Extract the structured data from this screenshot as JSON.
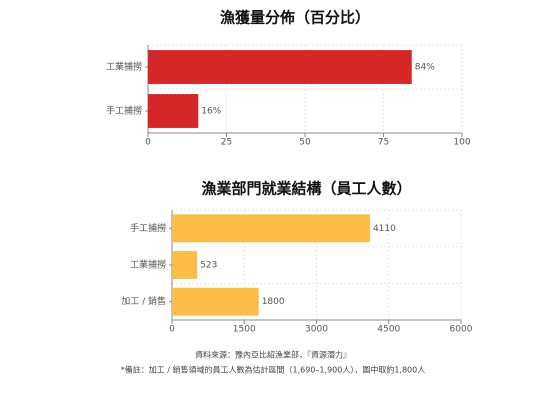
{
  "chart_data": [
    {
      "type": "bar",
      "orientation": "horizontal",
      "title": "漁獲量分佈（百分比）",
      "categories": [
        "工業捕撈",
        "手工捕撈"
      ],
      "values": [
        84,
        16
      ],
      "value_labels": [
        "84%",
        "16%"
      ],
      "color": "#d62728",
      "xlim": [
        0,
        100
      ],
      "xticks": [
        0,
        25,
        50,
        75,
        100
      ],
      "grid": true
    },
    {
      "type": "bar",
      "orientation": "horizontal",
      "title": "漁業部門就業結構（員工人數）",
      "categories": [
        "手工捕撈",
        "工業捕撈",
        "加工 / 銷售"
      ],
      "values": [
        4110,
        523,
        1800
      ],
      "color": "#fbbd48",
      "xlim": [
        0,
        6000
      ],
      "xticks": [
        0,
        1500,
        3000,
        4500,
        6000
      ],
      "grid": true
    }
  ],
  "footnotes": [
    "資料來源：豫內亞比紹漁業部，『資源潛力』",
    "*備註：加工 / 銷售領域的員工人數為估計區間（1,690–1,900人），圖中取約1,800人"
  ]
}
